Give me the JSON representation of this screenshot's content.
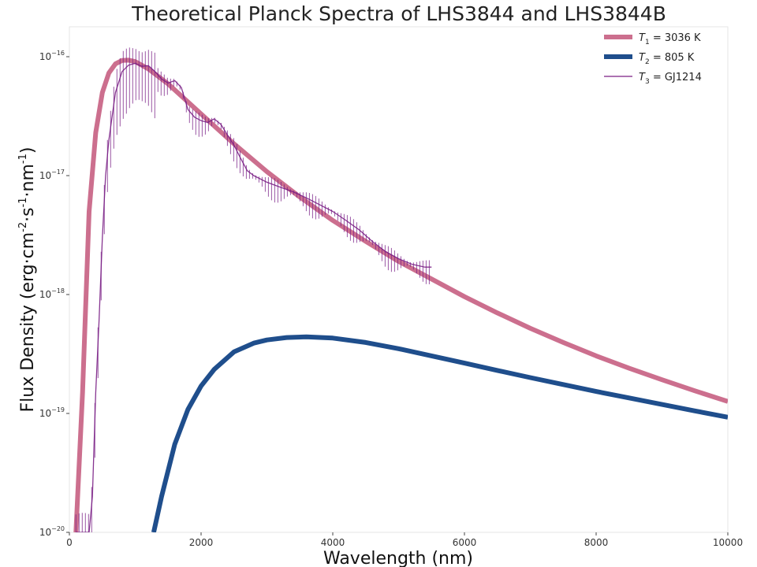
{
  "chart_data": {
    "type": "line",
    "title": "Theoretical Planck Spectra of LHS3844 and LHS3844B",
    "xlabel": "Wavelength (nm)",
    "ylabel_parts": [
      "Flux Density (erg·cm",
      "-2",
      "·s",
      "-1",
      "·nm",
      "-1",
      ")"
    ],
    "xlim": [
      0,
      10000
    ],
    "ylim": [
      1e-20,
      2e-16
    ],
    "yscale": "log",
    "xticks": [
      0,
      2000,
      4000,
      6000,
      8000,
      10000
    ],
    "xtick_labels": [
      "0",
      "2000",
      "4000",
      "6000",
      "8000",
      "10000"
    ],
    "yticks": [
      1e-20,
      1e-19,
      1e-18,
      1e-17,
      1e-16
    ],
    "ytick_labels": [
      {
        "base": "10",
        "exp": "−20"
      },
      {
        "base": "10",
        "exp": "−19"
      },
      {
        "base": "10",
        "exp": "−18"
      },
      {
        "base": "10",
        "exp": "−17"
      },
      {
        "base": "10",
        "exp": "−16"
      }
    ],
    "grid": false,
    "legend_position": "top-right",
    "series": [
      {
        "name_parts": {
          "sym": "T",
          "sub": "1",
          "rest": " = 3036 K"
        },
        "color": "#cc6f8e",
        "x": [
          100,
          200,
          300,
          400,
          500,
          600,
          700,
          800,
          900,
          1000,
          1200,
          1500,
          2000,
          2500,
          3000,
          3500,
          4000,
          4500,
          5000,
          5500,
          6000,
          6500,
          7000,
          7500,
          8000,
          8500,
          9000,
          9500,
          10000
        ],
        "y": [
          1e-20,
          1.5e-19,
          5e-18,
          2.3e-17,
          5e-17,
          7.3e-17,
          8.7e-17,
          9.3e-17,
          9.35e-17,
          9.1e-17,
          7.9e-17,
          5.9e-17,
          3.3e-17,
          1.85e-17,
          1.08e-17,
          6.6e-18,
          4.2e-18,
          2.8e-18,
          1.9e-18,
          1.35e-18,
          9.6e-19,
          7e-19,
          5.2e-19,
          3.95e-19,
          3.05e-19,
          2.4e-19,
          1.92e-19,
          1.55e-19,
          1.26e-19
        ]
      },
      {
        "name_parts": {
          "sym": "T",
          "sub": "2",
          "rest": " = 805 K"
        },
        "color": "#1f4e8c",
        "x": [
          1280,
          1400,
          1600,
          1800,
          2000,
          2200,
          2500,
          2800,
          3000,
          3300,
          3600,
          4000,
          4500,
          5000,
          5500,
          6000,
          6500,
          7000,
          7500,
          8000,
          8500,
          9000,
          9500,
          10000
        ],
        "y": [
          1e-20,
          2e-20,
          5.5e-20,
          1.08e-19,
          1.7e-19,
          2.35e-19,
          3.3e-19,
          3.9e-19,
          4.15e-19,
          4.35e-19,
          4.4e-19,
          4.3e-19,
          3.95e-19,
          3.5e-19,
          3.05e-19,
          2.65e-19,
          2.3e-19,
          2e-19,
          1.75e-19,
          1.53e-19,
          1.35e-19,
          1.19e-19,
          1.05e-19,
          9.3e-20
        ]
      },
      {
        "name_parts": {
          "sym": "T",
          "sub": "3",
          "rest": " = GJ1214"
        },
        "color": "#7a1f85",
        "x": [
          100,
          150,
          200,
          250,
          300,
          350,
          400,
          450,
          500,
          550,
          600,
          700,
          800,
          900,
          1000,
          1100,
          1200,
          1300,
          1400,
          1500,
          1600,
          1700,
          1800,
          1900,
          2000,
          2100,
          2200,
          2300,
          2400,
          2500,
          2600,
          2700,
          2800,
          3000,
          3200,
          3400,
          3600,
          3800,
          4000,
          4200,
          4400,
          4600,
          4800,
          5000,
          5200,
          5400,
          5500
        ],
        "y": [
          1e-20,
          1e-20,
          1e-20,
          1e-20,
          1e-20,
          2e-20,
          1.5e-19,
          6e-19,
          3e-18,
          1e-17,
          2e-17,
          5e-17,
          7.5e-17,
          8.5e-17,
          8.8e-17,
          8.3e-17,
          8.4e-17,
          7.5e-17,
          6.5e-17,
          6e-17,
          6.3e-17,
          5.5e-17,
          3.6e-17,
          3.1e-17,
          2.9e-17,
          2.8e-17,
          3e-17,
          2.7e-17,
          2.2e-17,
          1.8e-17,
          1.4e-17,
          1.1e-17,
          1e-17,
          8.8e-18,
          8e-18,
          7.3e-18,
          6.5e-18,
          5.7e-18,
          5e-18,
          4.2e-18,
          3.5e-18,
          2.8e-18,
          2.3e-18,
          2e-18,
          1.8e-18,
          1.7e-18,
          1.7e-18
        ]
      }
    ]
  }
}
